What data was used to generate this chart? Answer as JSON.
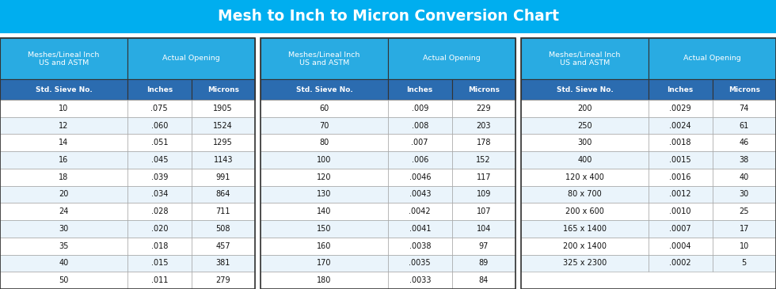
{
  "title": "Mesh to Inch to Micron Conversion Chart",
  "title_bg": "#00AEEF",
  "title_color": "#FFFFFF",
  "header1_bg": "#29ABE2",
  "header2_bg": "#2B6CB0",
  "row_bg_white": "#FFFFFF",
  "row_bg_light": "#EAF4FB",
  "border_dark": "#333333",
  "border_light": "#999999",
  "data_text_color": "#111111",
  "table1": {
    "span_header": [
      "Meshes/Lineal Inch\nUS and ASTM",
      "Actual Opening"
    ],
    "col_headers": [
      "Std. Sieve No.",
      "Inches",
      "Microns"
    ],
    "rows": [
      [
        "10",
        ".075",
        "1905"
      ],
      [
        "12",
        ".060",
        "1524"
      ],
      [
        "14",
        ".051",
        "1295"
      ],
      [
        "16",
        ".045",
        "1143"
      ],
      [
        "18",
        ".039",
        "991"
      ],
      [
        "20",
        ".034",
        "864"
      ],
      [
        "24",
        ".028",
        "711"
      ],
      [
        "30",
        ".020",
        "508"
      ],
      [
        "35",
        ".018",
        "457"
      ],
      [
        "40",
        ".015",
        "381"
      ],
      [
        "50",
        ".011",
        "279"
      ]
    ]
  },
  "table2": {
    "span_header": [
      "Meshes/Lineal Inch\nUS and ASTM",
      "Actual Opening"
    ],
    "col_headers": [
      "Std. Sieve No.",
      "Inches",
      "Microns"
    ],
    "rows": [
      [
        "60",
        ".009",
        "229"
      ],
      [
        "70",
        ".008",
        "203"
      ],
      [
        "80",
        ".007",
        "178"
      ],
      [
        "100",
        ".006",
        "152"
      ],
      [
        "120",
        ".0046",
        "117"
      ],
      [
        "130",
        ".0043",
        "109"
      ],
      [
        "140",
        ".0042",
        "107"
      ],
      [
        "150",
        ".0041",
        "104"
      ],
      [
        "160",
        ".0038",
        "97"
      ],
      [
        "170",
        ".0035",
        "89"
      ],
      [
        "180",
        ".0033",
        "84"
      ]
    ]
  },
  "table3": {
    "span_header": [
      "Meshes/Lineal Inch\nUS and ASTM",
      "Actual Opening"
    ],
    "col_headers": [
      "Std. Sieve No.",
      "Inches",
      "Microns"
    ],
    "rows": [
      [
        "200",
        ".0029",
        "74"
      ],
      [
        "250",
        ".0024",
        "61"
      ],
      [
        "300",
        ".0018",
        "46"
      ],
      [
        "400",
        ".0015",
        "38"
      ],
      [
        "120 x 400",
        ".0016",
        "40"
      ],
      [
        "80 x 700",
        ".0012",
        "30"
      ],
      [
        "200 x 600",
        ".0010",
        "25"
      ],
      [
        "165 x 1400",
        ".0007",
        "17"
      ],
      [
        "200 x 1400",
        ".0004",
        "10"
      ],
      [
        "325 x 2300",
        ".0002",
        "5"
      ]
    ]
  },
  "fig_width": 9.8,
  "fig_height": 3.65,
  "dpi": 100
}
